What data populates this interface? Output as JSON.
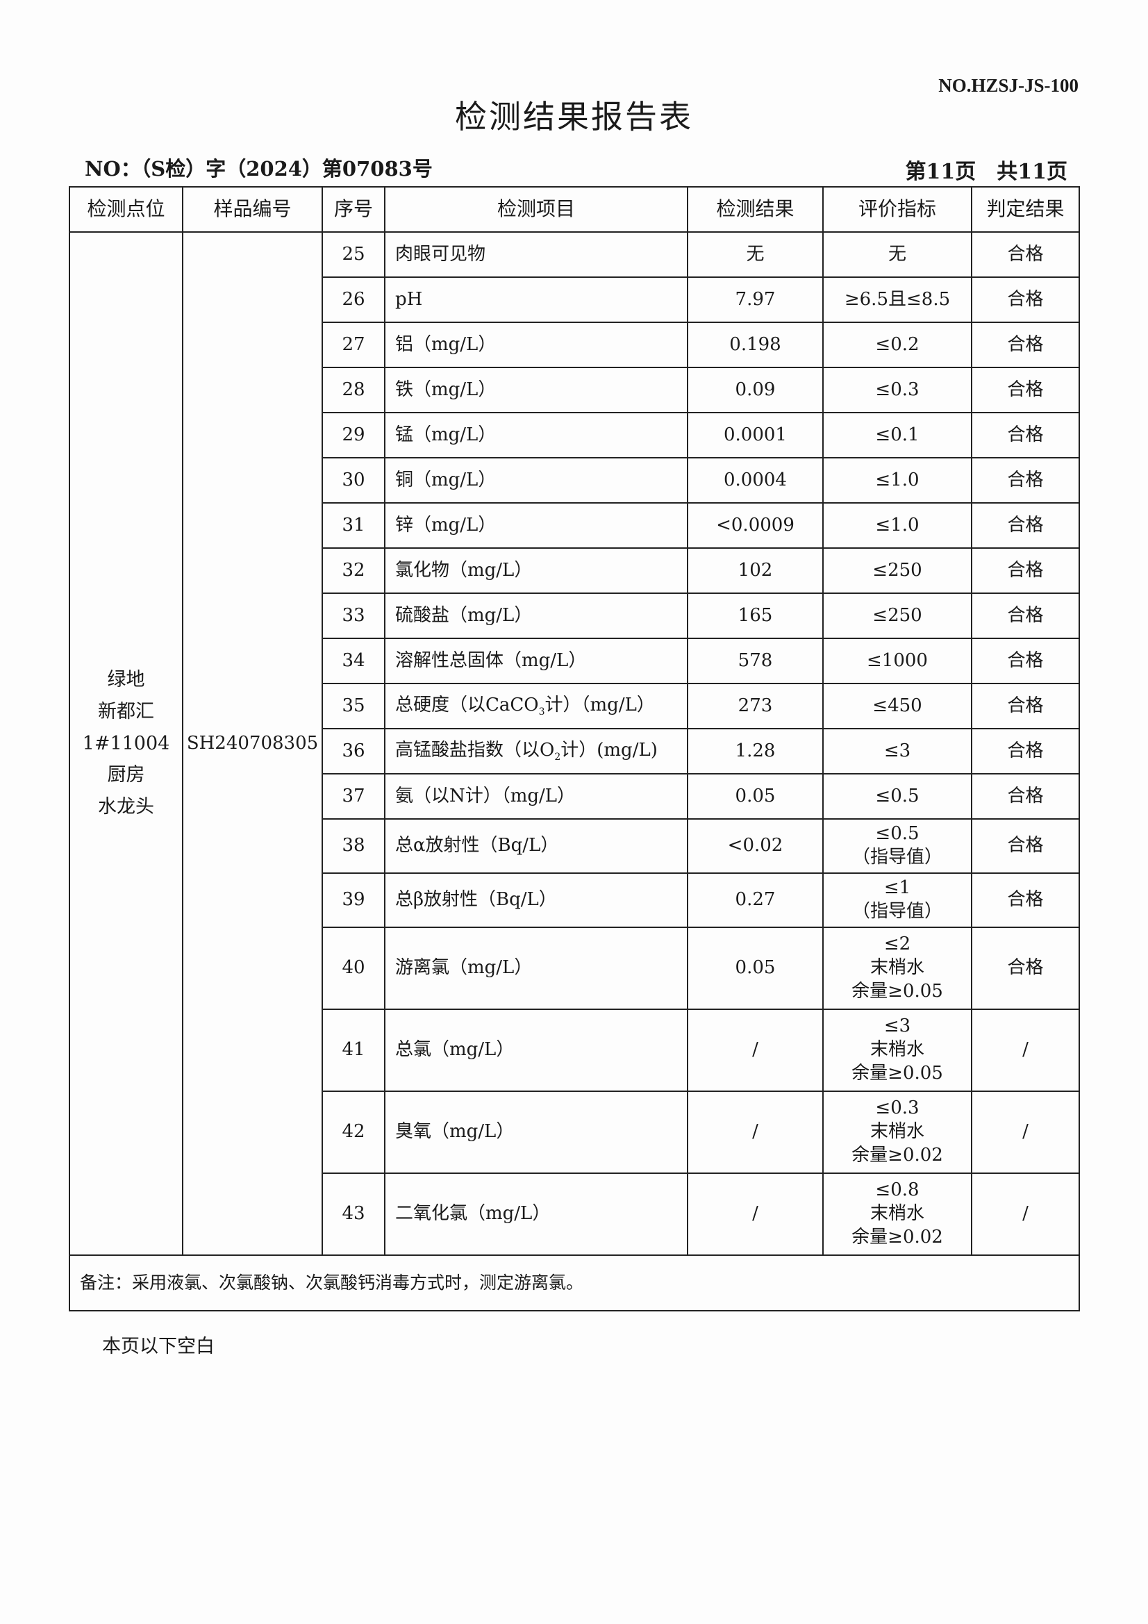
{
  "doc_code": "NO.HZSJ-JS-100",
  "title": "检测结果报告表",
  "report_no": "NO：（S检）字（2024）第07083号",
  "page_info": "第11页　共11页",
  "headers": [
    "检测点位",
    "样品编号",
    "序号",
    "检测项目",
    "检测结果",
    "评价指标",
    "判定结果"
  ],
  "site": [
    "绿地",
    "新都汇",
    "1#11004",
    "厨房",
    "水龙头"
  ],
  "sample_id": "SH240708305",
  "rows": [
    {
      "no": "25",
      "item": "肉眼可见物",
      "result": "无",
      "limit": "无",
      "verdict": "合格"
    },
    {
      "no": "26",
      "item": "pH",
      "result": "7.97",
      "limit": "≥6.5且≤8.5",
      "verdict": "合格"
    },
    {
      "no": "27",
      "item": "铝（mg/L）",
      "result": "0.198",
      "limit": "≤0.2",
      "verdict": "合格"
    },
    {
      "no": "28",
      "item": "铁（mg/L）",
      "result": "0.09",
      "limit": "≤0.3",
      "verdict": "合格"
    },
    {
      "no": "29",
      "item": "锰（mg/L）",
      "result": "0.0001",
      "limit": "≤0.1",
      "verdict": "合格"
    },
    {
      "no": "30",
      "item": "铜（mg/L）",
      "result": "0.0004",
      "limit": "≤1.0",
      "verdict": "合格"
    },
    {
      "no": "31",
      "item": "锌（mg/L）",
      "result": "<0.0009",
      "limit": "≤1.0",
      "verdict": "合格"
    },
    {
      "no": "32",
      "item": "氯化物（mg/L）",
      "result": "102",
      "limit": "≤250",
      "verdict": "合格"
    },
    {
      "no": "33",
      "item": "硫酸盐（mg/L）",
      "result": "165",
      "limit": "≤250",
      "verdict": "合格"
    },
    {
      "no": "34",
      "item": "溶解性总固体（mg/L）",
      "result": "578",
      "limit": "≤1000",
      "verdict": "合格"
    },
    {
      "no": "35",
      "item_a": "总硬度（以CaCO",
      "item_sub": "3",
      "item_b": "计）（mg/L）",
      "result": "273",
      "limit": "≤450",
      "verdict": "合格"
    },
    {
      "no": "36",
      "item_a": "高锰酸盐指数（以O",
      "item_sub": "2",
      "item_b": "计）(mg/L)",
      "result": "1.28",
      "limit": "≤3",
      "verdict": "合格"
    },
    {
      "no": "37",
      "item": "氨（以N计）（mg/L）",
      "result": "0.05",
      "limit": "≤0.5",
      "verdict": "合格"
    },
    {
      "no": "38",
      "item": "总α放射性（Bq/L）",
      "result": "<0.02",
      "limit": [
        "≤0.5",
        "（指导值）"
      ],
      "verdict": "合格"
    },
    {
      "no": "39",
      "item": "总β放射性（Bq/L）",
      "result": "0.27",
      "limit": [
        "≤1",
        "（指导值）"
      ],
      "verdict": "合格"
    },
    {
      "no": "40",
      "item": "游离氯（mg/L）",
      "result": "0.05",
      "limit": [
        "≤2",
        "末梢水",
        "余量≥0.05"
      ],
      "verdict": "合格"
    },
    {
      "no": "41",
      "item": "总氯（mg/L）",
      "result": "/",
      "limit": [
        "≤3",
        "末梢水",
        "余量≥0.05"
      ],
      "verdict": "/"
    },
    {
      "no": "42",
      "item": "臭氧（mg/L）",
      "result": "/",
      "limit": [
        "≤0.3",
        "末梢水",
        "余量≥0.02"
      ],
      "verdict": "/"
    },
    {
      "no": "43",
      "item": "二氧化氯（mg/L）",
      "result": "/",
      "limit": [
        "≤0.8",
        "末梢水",
        "余量≥0.02"
      ],
      "verdict": "/"
    }
  ],
  "remark": "备注：采用液氯、次氯酸钠、次氯酸钙消毒方式时，测定游离氯。",
  "blank_note": "本页以下空白"
}
